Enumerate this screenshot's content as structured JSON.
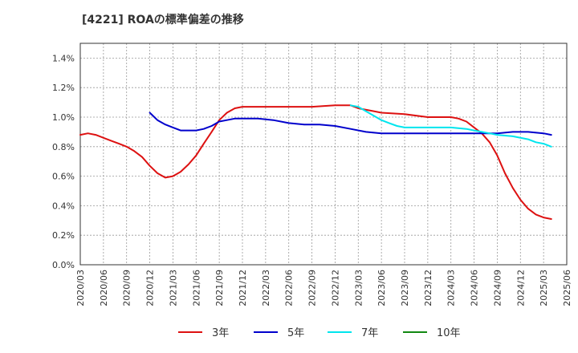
{
  "title": "[4221]  ROAの標準偏差の推移",
  "chart_data": {
    "type": "line",
    "title": "[4221]  ROAの標準偏差の推移",
    "xlabel": "",
    "ylabel": "",
    "ylim": [
      0,
      1.5
    ],
    "yticks": [
      "0.0%",
      "0.2%",
      "0.4%",
      "0.6%",
      "0.8%",
      "1.0%",
      "1.2%",
      "1.4%"
    ],
    "ytick_values": [
      0,
      0.2,
      0.4,
      0.6,
      0.8,
      1.0,
      1.2,
      1.4
    ],
    "x_categories": [
      "2020/03",
      "2020/06",
      "2020/09",
      "2020/12",
      "2021/03",
      "2021/06",
      "2021/09",
      "2021/12",
      "2022/03",
      "2022/06",
      "2022/09",
      "2022/12",
      "2023/03",
      "2023/06",
      "2023/09",
      "2023/12",
      "2024/03",
      "2024/06",
      "2024/09",
      "2024/12",
      "2025/03",
      "2025/06"
    ],
    "grid": true,
    "legend_position": "bottom",
    "series": [
      {
        "name": "3年",
        "color": "#dd1111",
        "values": [
          [
            0,
            0.88
          ],
          [
            0.33,
            0.89
          ],
          [
            0.67,
            0.88
          ],
          [
            1,
            0.86
          ],
          [
            1.33,
            0.84
          ],
          [
            1.67,
            0.82
          ],
          [
            2,
            0.8
          ],
          [
            2.33,
            0.77
          ],
          [
            2.67,
            0.73
          ],
          [
            3,
            0.67
          ],
          [
            3.33,
            0.62
          ],
          [
            3.67,
            0.59
          ],
          [
            4,
            0.6
          ],
          [
            4.33,
            0.63
          ],
          [
            4.67,
            0.68
          ],
          [
            5,
            0.74
          ],
          [
            5.33,
            0.82
          ],
          [
            5.67,
            0.9
          ],
          [
            6,
            0.98
          ],
          [
            6.33,
            1.03
          ],
          [
            6.67,
            1.06
          ],
          [
            7,
            1.07
          ],
          [
            8,
            1.07
          ],
          [
            9,
            1.07
          ],
          [
            10,
            1.07
          ],
          [
            11,
            1.08
          ],
          [
            11.67,
            1.08
          ],
          [
            12,
            1.06
          ],
          [
            12.67,
            1.04
          ],
          [
            13,
            1.03
          ],
          [
            14,
            1.02
          ],
          [
            15,
            1.0
          ],
          [
            16,
            1.0
          ],
          [
            16.33,
            0.99
          ],
          [
            16.67,
            0.97
          ],
          [
            17,
            0.93
          ],
          [
            17.33,
            0.89
          ],
          [
            17.67,
            0.83
          ],
          [
            18,
            0.74
          ],
          [
            18.33,
            0.62
          ],
          [
            18.67,
            0.52
          ],
          [
            19,
            0.44
          ],
          [
            19.33,
            0.38
          ],
          [
            19.67,
            0.34
          ],
          [
            20,
            0.32
          ],
          [
            20.33,
            0.31
          ]
        ]
      },
      {
        "name": "5年",
        "color": "#0000cc",
        "values": [
          [
            3,
            1.03
          ],
          [
            3.33,
            0.98
          ],
          [
            3.67,
            0.95
          ],
          [
            4,
            0.93
          ],
          [
            4.33,
            0.91
          ],
          [
            4.67,
            0.91
          ],
          [
            5,
            0.91
          ],
          [
            5.33,
            0.92
          ],
          [
            5.67,
            0.94
          ],
          [
            6,
            0.97
          ],
          [
            6.33,
            0.98
          ],
          [
            6.67,
            0.99
          ],
          [
            7,
            0.99
          ],
          [
            7.67,
            0.99
          ],
          [
            8.33,
            0.98
          ],
          [
            9,
            0.96
          ],
          [
            9.67,
            0.95
          ],
          [
            10.33,
            0.95
          ],
          [
            11,
            0.94
          ],
          [
            11.67,
            0.92
          ],
          [
            12.33,
            0.9
          ],
          [
            13,
            0.89
          ],
          [
            14,
            0.89
          ],
          [
            15,
            0.89
          ],
          [
            16,
            0.89
          ],
          [
            17,
            0.89
          ],
          [
            18,
            0.89
          ],
          [
            18.67,
            0.9
          ],
          [
            19.33,
            0.9
          ],
          [
            20,
            0.89
          ],
          [
            20.33,
            0.88
          ]
        ]
      },
      {
        "name": "7年",
        "color": "#00e5ee",
        "values": [
          [
            11.67,
            1.08
          ],
          [
            12,
            1.07
          ],
          [
            12.33,
            1.04
          ],
          [
            12.67,
            1.01
          ],
          [
            13,
            0.98
          ],
          [
            13.33,
            0.96
          ],
          [
            13.67,
            0.94
          ],
          [
            14,
            0.93
          ],
          [
            15,
            0.93
          ],
          [
            16,
            0.93
          ],
          [
            16.67,
            0.92
          ],
          [
            17,
            0.91
          ],
          [
            17.33,
            0.9
          ],
          [
            17.67,
            0.89
          ],
          [
            18,
            0.88
          ],
          [
            18.67,
            0.87
          ],
          [
            19.33,
            0.85
          ],
          [
            19.67,
            0.83
          ],
          [
            20,
            0.82
          ],
          [
            20.33,
            0.8
          ]
        ]
      },
      {
        "name": "10年",
        "color": "#118811",
        "values": []
      }
    ]
  }
}
